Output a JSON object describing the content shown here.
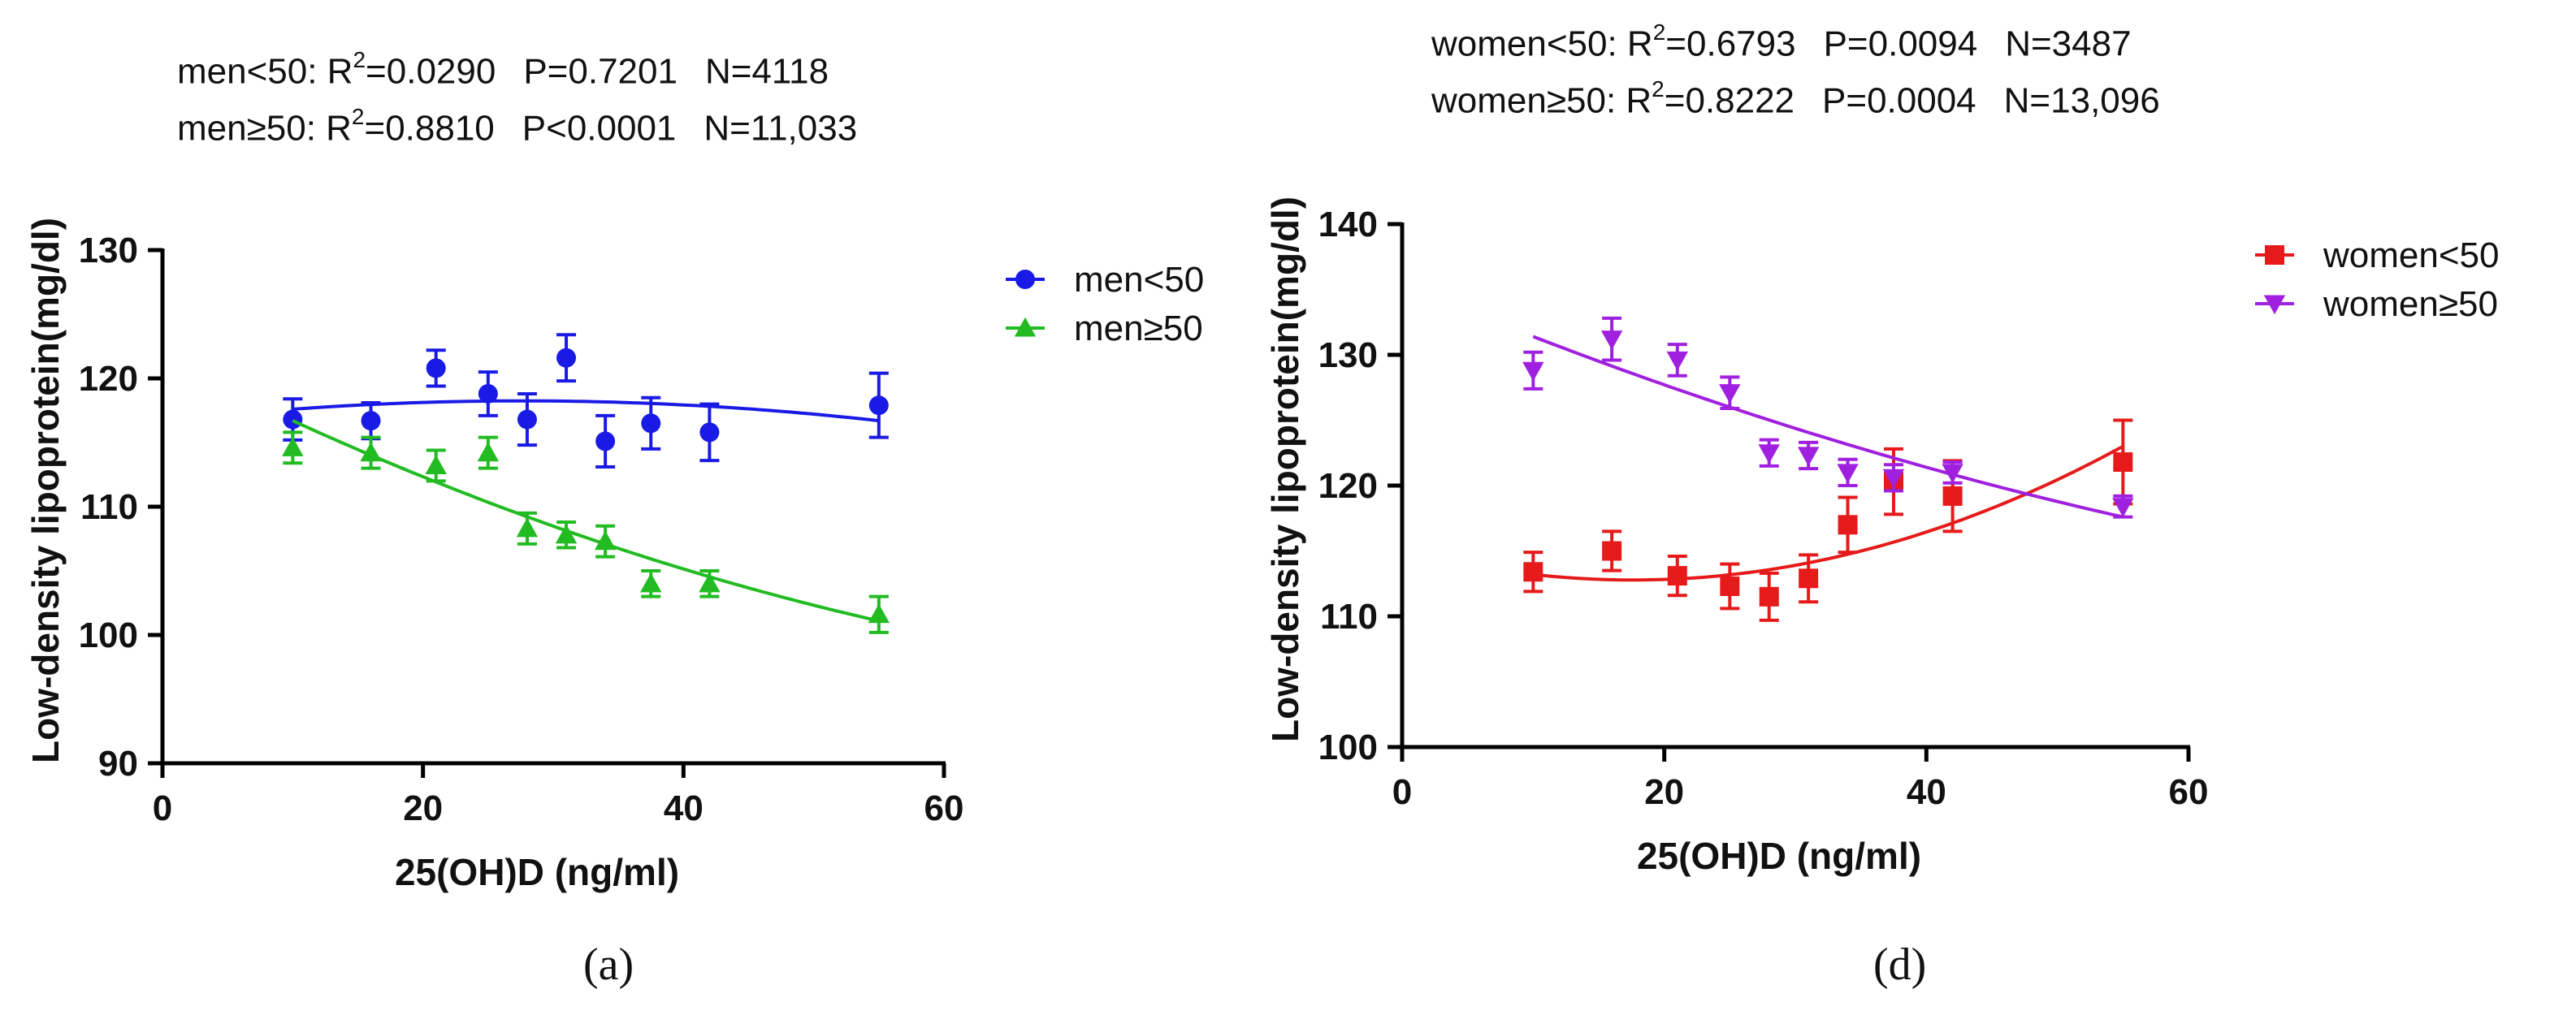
{
  "stats": {
    "a": [
      {
        "group": "men<50",
        "r2": "0.0290",
        "p": "P=0.7201",
        "n": "N=4118"
      },
      {
        "group": "men≥50",
        "r2": "0.8810",
        "p": "P<0.0001",
        "n": "N=11,033"
      }
    ],
    "d": [
      {
        "group": "women<50",
        "r2": "0.6793",
        "p": "P=0.0094",
        "n": "N=3487"
      },
      {
        "group": "women≥50",
        "r2": "0.8222",
        "p": "P=0.0004",
        "n": "N=13,096"
      }
    ]
  },
  "panel_labels": {
    "a": "(a)",
    "d": "(d)"
  },
  "chart_data": [
    {
      "id": "a",
      "type": "scatter",
      "title": "",
      "xlabel": "25(OH)D (ng/ml)",
      "ylabel": "Low-density lipoprotein(mg/dl)",
      "xlim": [
        0,
        60
      ],
      "ylim": [
        90,
        130
      ],
      "xticks": [
        0,
        20,
        40,
        60
      ],
      "yticks": [
        90,
        100,
        110,
        120,
        130
      ],
      "legend_position": "right",
      "series": [
        {
          "name": "men<50",
          "color": "#1a1ae6",
          "marker": "circle",
          "x": [
            10,
            16,
            21,
            25,
            28,
            31,
            34,
            37.5,
            42,
            55
          ],
          "y": [
            116.8,
            116.7,
            120.8,
            118.8,
            116.8,
            121.6,
            115.1,
            116.5,
            115.8,
            117.9
          ],
          "err": [
            1.6,
            1.4,
            1.4,
            1.7,
            2.0,
            1.8,
            2.0,
            2.0,
            2.2,
            2.5
          ],
          "fit": [
            117.6,
            118.2,
            116.7
          ]
        },
        {
          "name": "men≥50",
          "color": "#22bb22",
          "marker": "triangle-up",
          "x": [
            10,
            16,
            21,
            25,
            28,
            31,
            34,
            37.5,
            42,
            55
          ],
          "y": [
            114.6,
            114.2,
            113.2,
            114.2,
            108.3,
            107.8,
            107.3,
            104.0,
            104.0,
            101.6
          ],
          "err": [
            1.2,
            1.2,
            1.2,
            1.2,
            1.2,
            1.0,
            1.2,
            1.0,
            1.0,
            1.4
          ],
          "fit": [
            116.7,
            107.6,
            101.1
          ]
        }
      ]
    },
    {
      "id": "d",
      "type": "scatter",
      "title": "",
      "xlabel": "25(OH)D (ng/ml)",
      "ylabel": "Low-density lipoprotein(mg/dl)",
      "xlim": [
        0,
        60
      ],
      "ylim": [
        100,
        140
      ],
      "xticks": [
        0,
        20,
        40,
        60
      ],
      "yticks": [
        100,
        110,
        120,
        130,
        140
      ],
      "legend_position": "right",
      "series": [
        {
          "name": "women<50",
          "color": "#e61a1a",
          "marker": "square",
          "x": [
            10,
            16,
            21,
            25,
            28,
            31,
            34,
            37.5,
            42,
            55
          ],
          "y": [
            113.4,
            115.0,
            113.1,
            112.3,
            111.5,
            112.9,
            117.0,
            120.3,
            119.2,
            121.8
          ],
          "err": [
            1.5,
            1.5,
            1.5,
            1.7,
            1.8,
            1.8,
            2.1,
            2.5,
            2.7,
            3.2
          ],
          "fit": [
            113.2,
            114.4,
            123.0
          ]
        },
        {
          "name": "women≥50",
          "color": "#a020e0",
          "marker": "triangle-down",
          "x": [
            10,
            16,
            21,
            25,
            28,
            31,
            34,
            37.5,
            42,
            55
          ],
          "y": [
            128.8,
            131.2,
            129.6,
            127.1,
            122.5,
            122.3,
            121.0,
            120.6,
            121.0,
            118.4
          ],
          "err": [
            1.4,
            1.6,
            1.2,
            1.2,
            1.0,
            1.0,
            1.0,
            1.0,
            0.8,
            0.8
          ],
          "fit": [
            131.4,
            123.6,
            117.6
          ]
        }
      ]
    }
  ]
}
